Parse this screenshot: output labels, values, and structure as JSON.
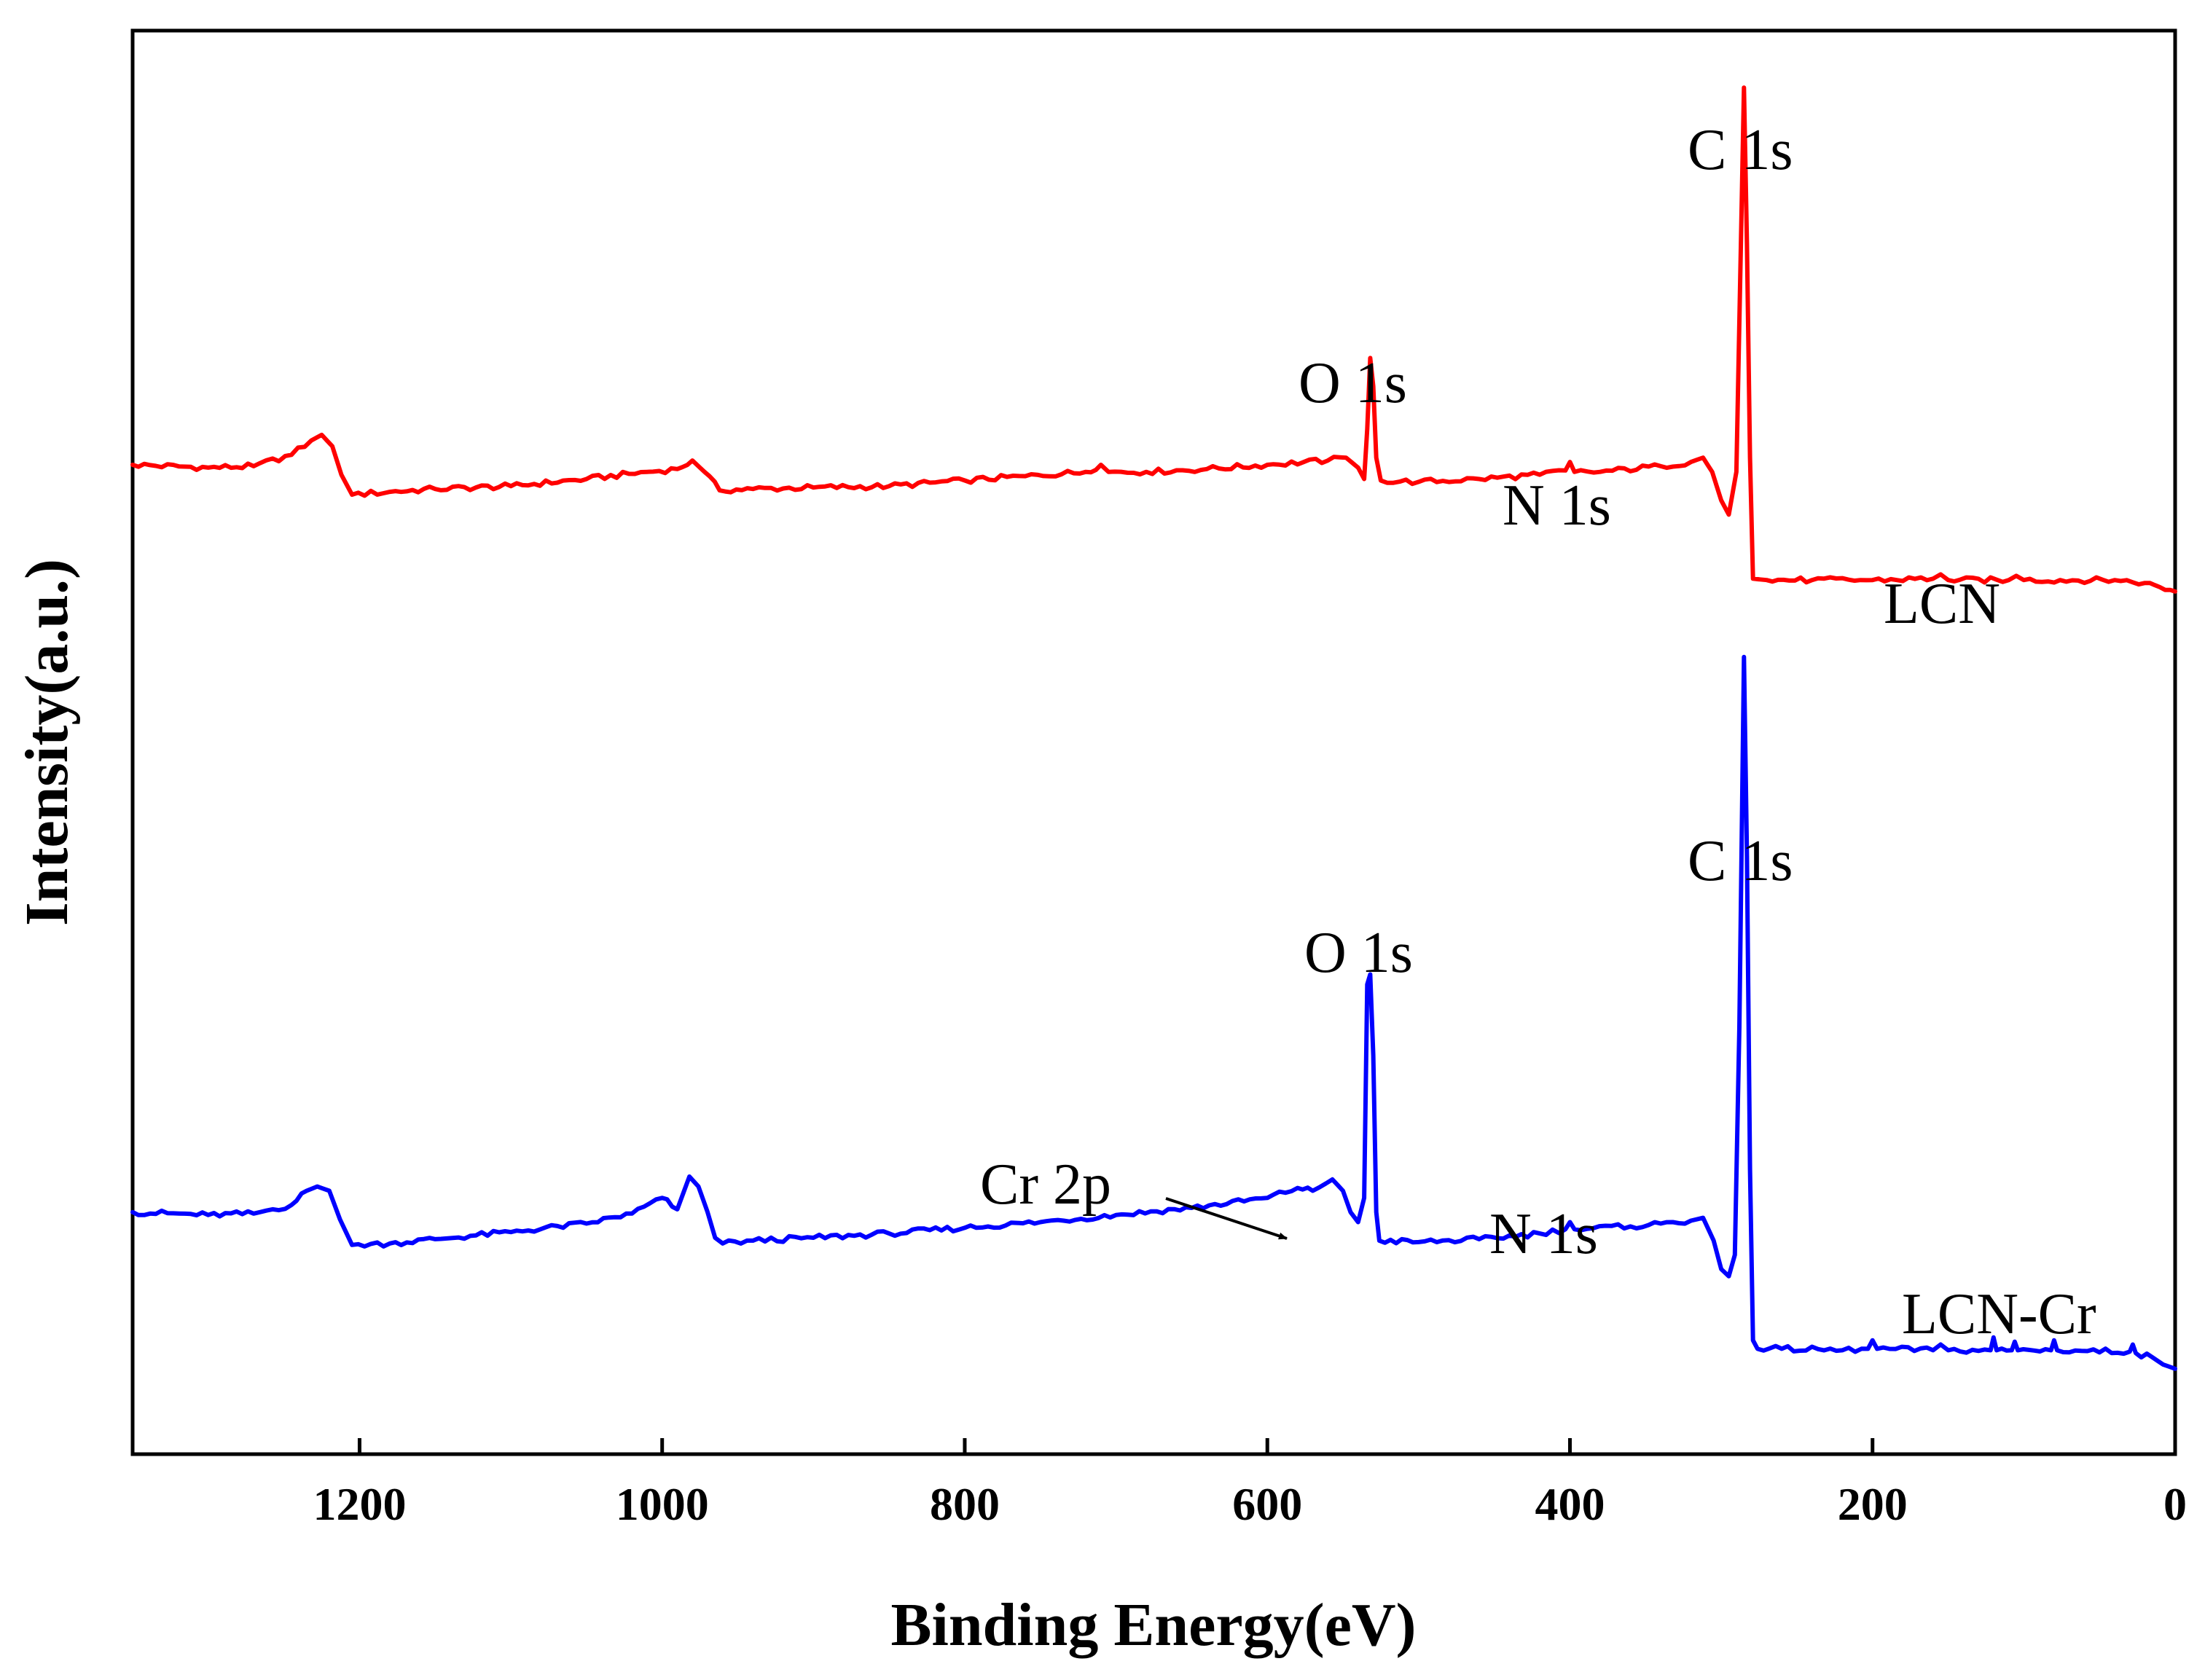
{
  "chart_data": {
    "type": "line",
    "title": "",
    "xlabel": "Binding Energy(eV)",
    "ylabel": "Intensity(a.u.)",
    "xlim": [
      1350,
      0
    ],
    "x_reversed": true,
    "ylim": [
      0,
      1
    ],
    "y_ticks_shown": false,
    "x_ticks": [
      1200,
      1000,
      800,
      600,
      400,
      200,
      0
    ],
    "x_tick_labels": [
      "1200",
      "1000",
      "800",
      "600",
      "400",
      "200",
      "0"
    ],
    "series": [
      {
        "name": "LCN",
        "color": "#ff0000",
        "points": [
          [
            1350,
            0.695
          ],
          [
            1300,
            0.693
          ],
          [
            1270,
            0.694
          ],
          [
            1245,
            0.702
          ],
          [
            1232,
            0.712
          ],
          [
            1225,
            0.716
          ],
          [
            1218,
            0.708
          ],
          [
            1212,
            0.688
          ],
          [
            1205,
            0.674
          ],
          [
            1180,
            0.676
          ],
          [
            1150,
            0.678
          ],
          [
            1100,
            0.68
          ],
          [
            1050,
            0.685
          ],
          [
            1010,
            0.69
          ],
          [
            990,
            0.692
          ],
          [
            980,
            0.698
          ],
          [
            972,
            0.69
          ],
          [
            962,
            0.677
          ],
          [
            940,
            0.678
          ],
          [
            900,
            0.679
          ],
          [
            850,
            0.68
          ],
          [
            800,
            0.684
          ],
          [
            760,
            0.687
          ],
          [
            720,
            0.69
          ],
          [
            710,
            0.695
          ],
          [
            705,
            0.69
          ],
          [
            680,
            0.69
          ],
          [
            640,
            0.692
          ],
          [
            600,
            0.695
          ],
          [
            560,
            0.698
          ],
          [
            548,
            0.7
          ],
          [
            540,
            0.693
          ],
          [
            536,
            0.685
          ],
          [
            534,
            0.72
          ],
          [
            532,
            0.77
          ],
          [
            530,
            0.75
          ],
          [
            528,
            0.7
          ],
          [
            525,
            0.684
          ],
          [
            500,
            0.683
          ],
          [
            460,
            0.685
          ],
          [
            420,
            0.688
          ],
          [
            403,
            0.691
          ],
          [
            400,
            0.697
          ],
          [
            397,
            0.69
          ],
          [
            380,
            0.69
          ],
          [
            340,
            0.694
          ],
          [
            320,
            0.697
          ],
          [
            312,
            0.7
          ],
          [
            306,
            0.69
          ],
          [
            300,
            0.67
          ],
          [
            295,
            0.66
          ],
          [
            290,
            0.69
          ],
          [
            287,
            0.85
          ],
          [
            285,
            0.96
          ],
          [
            283,
            0.85
          ],
          [
            281,
            0.7
          ],
          [
            279,
            0.615
          ],
          [
            270,
            0.614
          ],
          [
            240,
            0.614
          ],
          [
            200,
            0.614
          ],
          [
            160,
            0.615
          ],
          [
            155,
            0.618
          ],
          [
            150,
            0.614
          ],
          [
            110,
            0.614
          ],
          [
            105,
            0.617
          ],
          [
            100,
            0.614
          ],
          [
            40,
            0.614
          ],
          [
            20,
            0.612
          ],
          [
            10,
            0.609
          ],
          [
            0,
            0.606
          ]
        ]
      },
      {
        "name": "LCN-Cr",
        "color": "#0000ff",
        "points": [
          [
            1350,
            0.17
          ],
          [
            1300,
            0.168
          ],
          [
            1270,
            0.169
          ],
          [
            1245,
            0.175
          ],
          [
            1235,
            0.185
          ],
          [
            1228,
            0.188
          ],
          [
            1220,
            0.185
          ],
          [
            1213,
            0.165
          ],
          [
            1205,
            0.147
          ],
          [
            1180,
            0.148
          ],
          [
            1150,
            0.151
          ],
          [
            1100,
            0.156
          ],
          [
            1050,
            0.162
          ],
          [
            1020,
            0.169
          ],
          [
            1000,
            0.18
          ],
          [
            990,
            0.172
          ],
          [
            982,
            0.195
          ],
          [
            976,
            0.188
          ],
          [
            970,
            0.17
          ],
          [
            965,
            0.152
          ],
          [
            960,
            0.148
          ],
          [
            940,
            0.15
          ],
          [
            900,
            0.152
          ],
          [
            850,
            0.155
          ],
          [
            800,
            0.159
          ],
          [
            750,
            0.163
          ],
          [
            700,
            0.168
          ],
          [
            650,
            0.173
          ],
          [
            600,
            0.18
          ],
          [
            580,
            0.187
          ],
          [
            570,
            0.185
          ],
          [
            557,
            0.193
          ],
          [
            550,
            0.185
          ],
          [
            545,
            0.17
          ],
          [
            540,
            0.163
          ],
          [
            536,
            0.18
          ],
          [
            534,
            0.33
          ],
          [
            532,
            0.337
          ],
          [
            530,
            0.28
          ],
          [
            528,
            0.17
          ],
          [
            526,
            0.15
          ],
          [
            500,
            0.149
          ],
          [
            460,
            0.151
          ],
          [
            420,
            0.155
          ],
          [
            403,
            0.158
          ],
          [
            400,
            0.163
          ],
          [
            397,
            0.158
          ],
          [
            360,
            0.16
          ],
          [
            340,
            0.162
          ],
          [
            320,
            0.164
          ],
          [
            312,
            0.166
          ],
          [
            305,
            0.15
          ],
          [
            300,
            0.13
          ],
          [
            295,
            0.125
          ],
          [
            291,
            0.14
          ],
          [
            288,
            0.3
          ],
          [
            285,
            0.56
          ],
          [
            283,
            0.42
          ],
          [
            281,
            0.2
          ],
          [
            279,
            0.08
          ],
          [
            276,
            0.074
          ],
          [
            260,
            0.074
          ],
          [
            220,
            0.073
          ],
          [
            203,
            0.074
          ],
          [
            200,
            0.08
          ],
          [
            197,
            0.074
          ],
          [
            160,
            0.073
          ],
          [
            155,
            0.077
          ],
          [
            150,
            0.073
          ],
          [
            122,
            0.073
          ],
          [
            120,
            0.082
          ],
          [
            118,
            0.073
          ],
          [
            108,
            0.073
          ],
          [
            106,
            0.079
          ],
          [
            104,
            0.073
          ],
          [
            82,
            0.073
          ],
          [
            80,
            0.08
          ],
          [
            78,
            0.073
          ],
          [
            30,
            0.072
          ],
          [
            28,
            0.077
          ],
          [
            26,
            0.071
          ],
          [
            15,
            0.068
          ],
          [
            8,
            0.063
          ],
          [
            0,
            0.06
          ]
        ]
      }
    ],
    "annotations": [
      {
        "text": "C 1s",
        "series": "LCN",
        "x": 285
      },
      {
        "text": "O 1s",
        "series": "LCN",
        "x": 532
      },
      {
        "text": "N 1s",
        "series": "LCN",
        "x": 400
      },
      {
        "text": "C 1s",
        "series": "LCN-Cr",
        "x": 285
      },
      {
        "text": "O 1s",
        "series": "LCN-Cr",
        "x": 532
      },
      {
        "text": "N 1s",
        "series": "LCN-Cr",
        "x": 400
      },
      {
        "text": "Cr 2p",
        "series": "LCN-Cr",
        "x": 580,
        "arrow": true
      }
    ],
    "legend": "series labels placed at right end of each curve"
  }
}
